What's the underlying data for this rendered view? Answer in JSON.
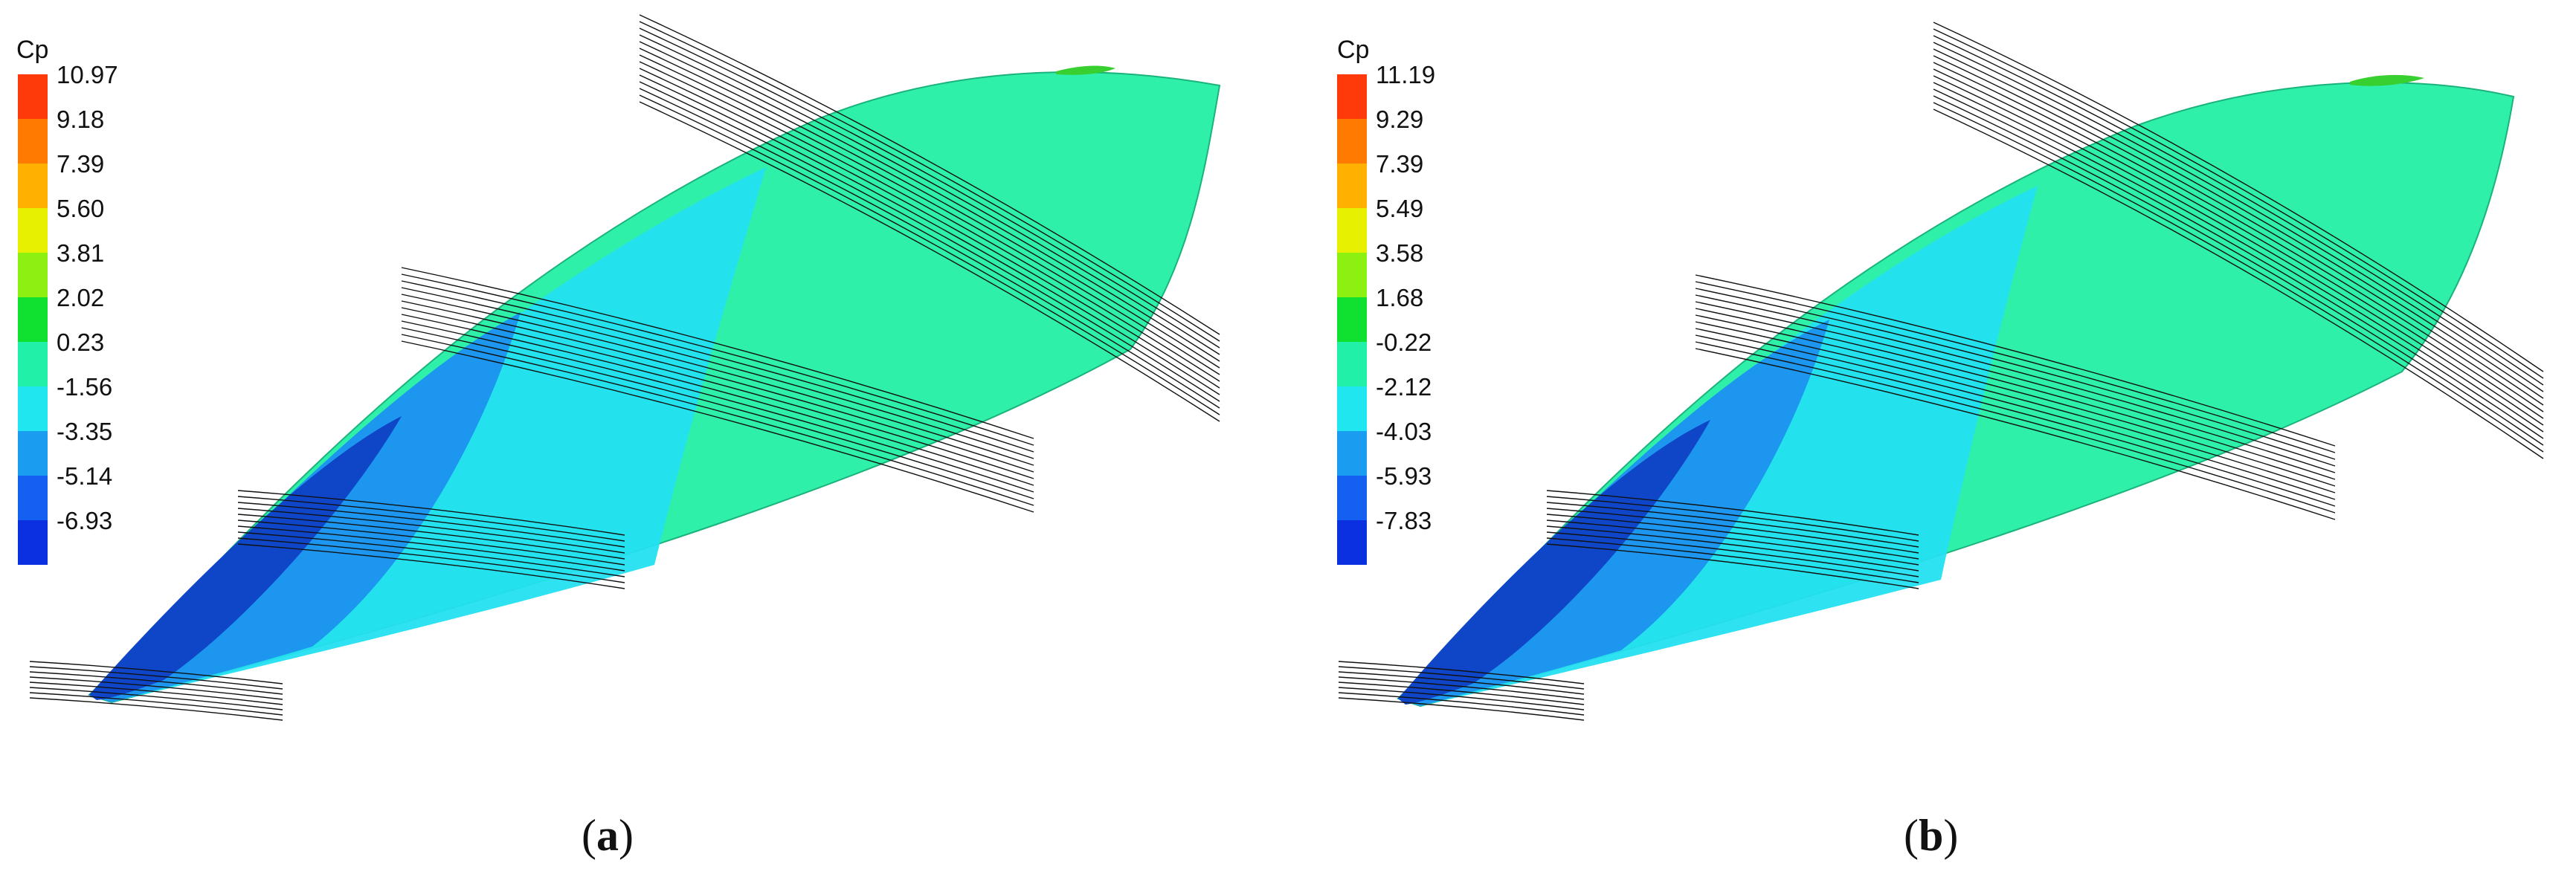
{
  "colors": {
    "body": "#2FF0A8",
    "panelA_steps": [
      "#ff3a0a",
      "#ff7a00",
      "#ffb000",
      "#e7f000",
      "#8cf010",
      "#10e030",
      "#20f0a8",
      "#20e6f0",
      "#1a9cf0",
      "#1460f0",
      "#0a30e0"
    ],
    "panelB_steps": [
      "#ff3a0a",
      "#ff7a00",
      "#ffb000",
      "#e7f000",
      "#8cf010",
      "#10e030",
      "#20f0a8",
      "#20e6f0",
      "#1a9cf0",
      "#1460f0",
      "#0a30e0"
    ]
  },
  "panels": [
    {
      "id": "a",
      "legend_title": "Cp",
      "ticks": [
        "10.97",
        "9.18",
        "7.39",
        "5.60",
        "3.81",
        "2.02",
        "0.23",
        "-1.56",
        "-3.35",
        "-5.14",
        "-6.93"
      ],
      "caption_open": "(",
      "caption_letter": "a",
      "caption_close": ")"
    },
    {
      "id": "b",
      "legend_title": "Cp",
      "ticks": [
        "11.19",
        "9.29",
        "7.39",
        "5.49",
        "3.58",
        "1.68",
        "-0.22",
        "-2.12",
        "-4.03",
        "-5.93",
        "-7.83"
      ],
      "caption_open": "(",
      "caption_letter": "b",
      "caption_close": ")"
    }
  ]
}
